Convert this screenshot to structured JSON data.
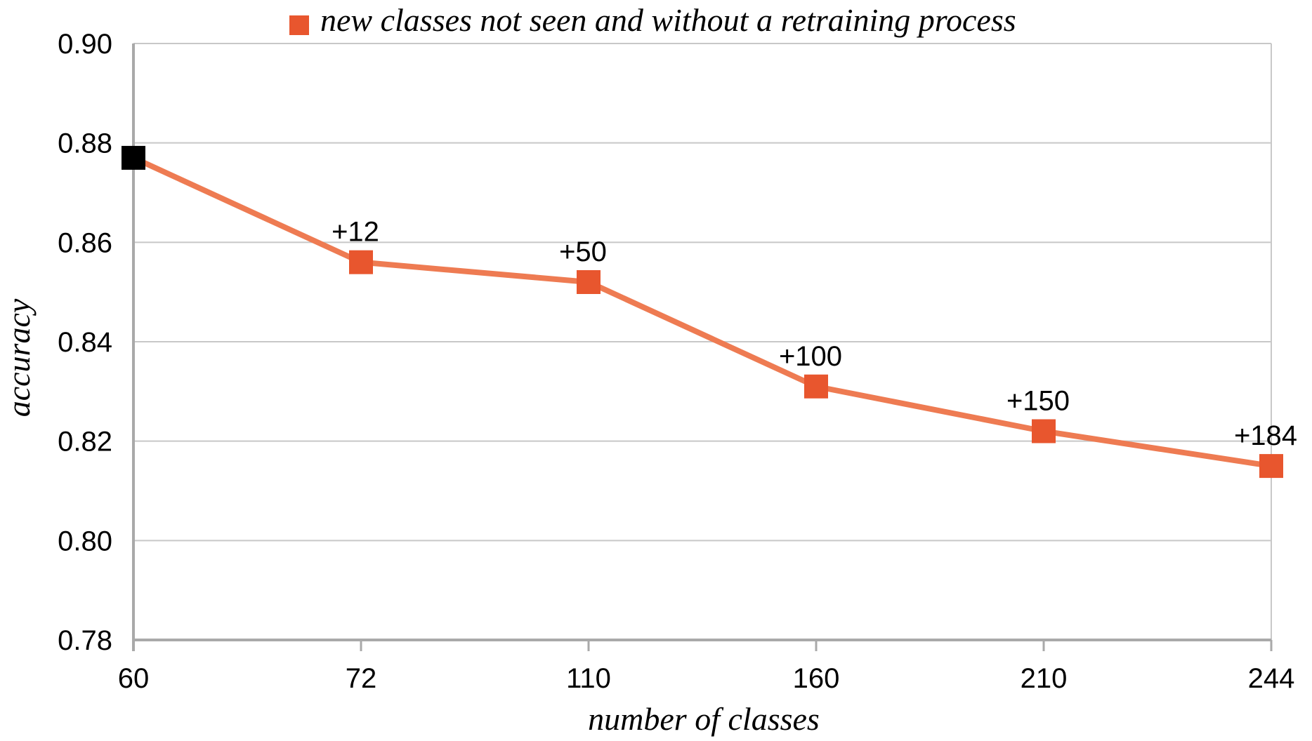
{
  "chart_data": {
    "type": "line",
    "categories": [
      "60",
      "72",
      "110",
      "160",
      "210",
      "244"
    ],
    "series": [
      {
        "name": "new classes not seen and without a retraining process",
        "values": [
          0.877,
          0.856,
          0.852,
          0.831,
          0.822,
          0.815
        ],
        "point_labels": [
          "",
          "+12",
          "+50",
          "+100",
          "+150",
          "+184"
        ],
        "point_colors": [
          "#000000",
          "#e8562e",
          "#e8562e",
          "#e8562e",
          "#e8562e",
          "#e8562e"
        ]
      }
    ],
    "xlabel": "number of classes",
    "ylabel": "accuracy",
    "ylim": [
      0.78,
      0.9
    ],
    "yticks": [
      "0.78",
      "0.80",
      "0.82",
      "0.84",
      "0.86",
      "0.88",
      "0.90"
    ],
    "grid": true,
    "legend_position": "top",
    "line_color": "#ee7b52",
    "marker_color": "#e8562e"
  }
}
